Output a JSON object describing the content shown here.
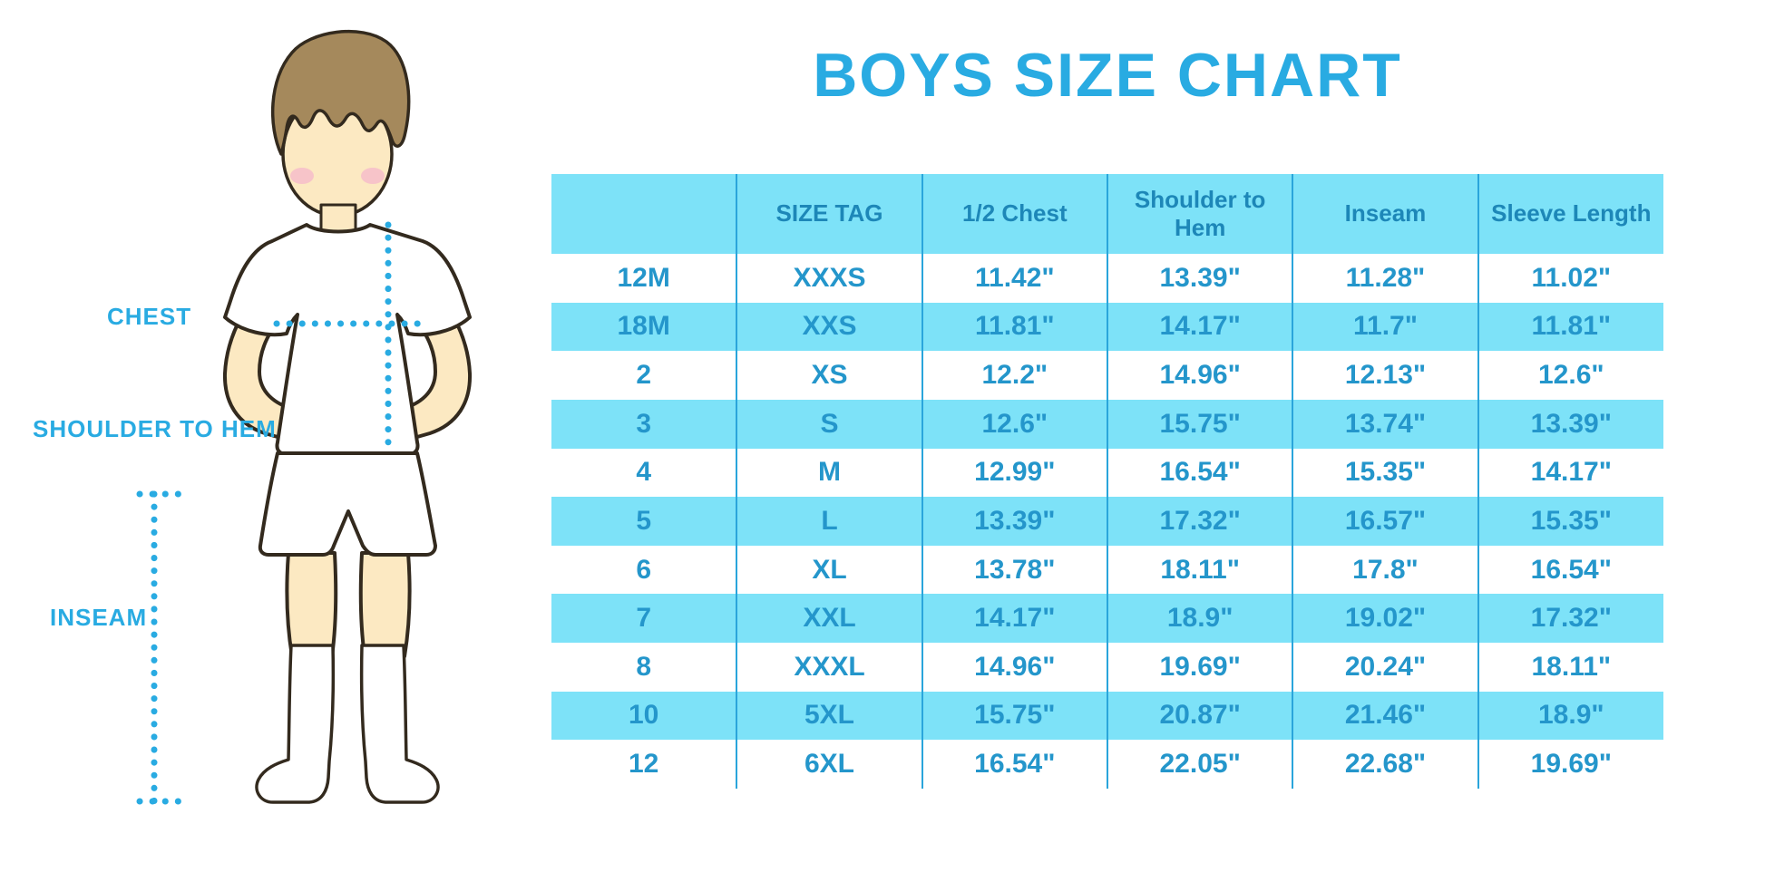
{
  "title": "BOYS SIZE CHART",
  "diagram": {
    "chest_label": "CHEST",
    "shoulder_to_hem_label": "SHOULDER TO HEM",
    "inseam_label": "INSEAM",
    "illustration": "boy-in-white-tshirt-shorts-and-knee-socks-with-dotted-measurement-guides"
  },
  "table": {
    "columns": [
      "",
      "SIZE TAG",
      "1/2 Chest",
      "Shoulder to Hem",
      "Inseam",
      "Sleeve Length"
    ],
    "rows": [
      [
        "12M",
        "XXXS",
        "11.42\"",
        "13.39\"",
        "11.28\"",
        "11.02\""
      ],
      [
        "18M",
        "XXS",
        "11.81\"",
        "14.17\"",
        "11.7\"",
        "11.81\""
      ],
      [
        "2",
        "XS",
        "12.2\"",
        "14.96\"",
        "12.13\"",
        "12.6\""
      ],
      [
        "3",
        "S",
        "12.6\"",
        "15.75\"",
        "13.74\"",
        "13.39\""
      ],
      [
        "4",
        "M",
        "12.99\"",
        "16.54\"",
        "15.35\"",
        "14.17\""
      ],
      [
        "5",
        "L",
        "13.39\"",
        "17.32\"",
        "16.57\"",
        "15.35\""
      ],
      [
        "6",
        "XL",
        "13.78\"",
        "18.11\"",
        "17.8\"",
        "16.54\""
      ],
      [
        "7",
        "XXL",
        "14.17\"",
        "18.9\"",
        "19.02\"",
        "17.32\""
      ],
      [
        "8",
        "XXXL",
        "14.96\"",
        "19.69\"",
        "20.24\"",
        "18.11\""
      ],
      [
        "10",
        "5XL",
        "15.75\"",
        "20.87\"",
        "21.46\"",
        "18.9\""
      ],
      [
        "12",
        "6XL",
        "16.54\"",
        "22.05\"",
        "22.68\"",
        "19.69\""
      ]
    ]
  },
  "colors": {
    "accent_blue": "#29ABE2",
    "stripe_blue": "#7DE2F8",
    "header_text_blue": "#1D87B8",
    "cell_text_blue": "#2496CB",
    "divider_blue": "#2AA5DB",
    "skin": "#FCE9C2",
    "hair_brown": "#A5895C",
    "cheek_pink": "#F7C4C9"
  },
  "chart_data": {
    "type": "table",
    "title": "BOYS SIZE CHART",
    "columns": [
      "",
      "SIZE TAG",
      "1/2 Chest",
      "Shoulder to Hem",
      "Inseam",
      "Sleeve Length"
    ],
    "rows": [
      [
        "12M",
        "XXXS",
        "11.42\"",
        "13.39\"",
        "11.28\"",
        "11.02\""
      ],
      [
        "18M",
        "XXS",
        "11.81\"",
        "14.17\"",
        "11.7\"",
        "11.81\""
      ],
      [
        "2",
        "XS",
        "12.2\"",
        "14.96\"",
        "12.13\"",
        "12.6\""
      ],
      [
        "3",
        "S",
        "12.6\"",
        "15.75\"",
        "13.74\"",
        "13.39\""
      ],
      [
        "4",
        "M",
        "12.99\"",
        "16.54\"",
        "15.35\"",
        "14.17\""
      ],
      [
        "5",
        "L",
        "13.39\"",
        "17.32\"",
        "16.57\"",
        "15.35\""
      ],
      [
        "6",
        "XL",
        "13.78\"",
        "18.11\"",
        "17.8\"",
        "16.54\""
      ],
      [
        "7",
        "XXL",
        "14.17\"",
        "18.9\"",
        "19.02\"",
        "17.32\""
      ],
      [
        "8",
        "XXXL",
        "14.96\"",
        "19.69\"",
        "20.24\"",
        "18.11\""
      ],
      [
        "10",
        "5XL",
        "15.75\"",
        "20.87\"",
        "21.46\"",
        "18.9\""
      ],
      [
        "12",
        "6XL",
        "16.54\"",
        "22.05\"",
        "22.68\"",
        "19.69\""
      ]
    ],
    "notes": "Striped rows alternate white / light blue; diagram labels CHEST, SHOULDER TO HEM, INSEAM with dotted guide lines"
  }
}
